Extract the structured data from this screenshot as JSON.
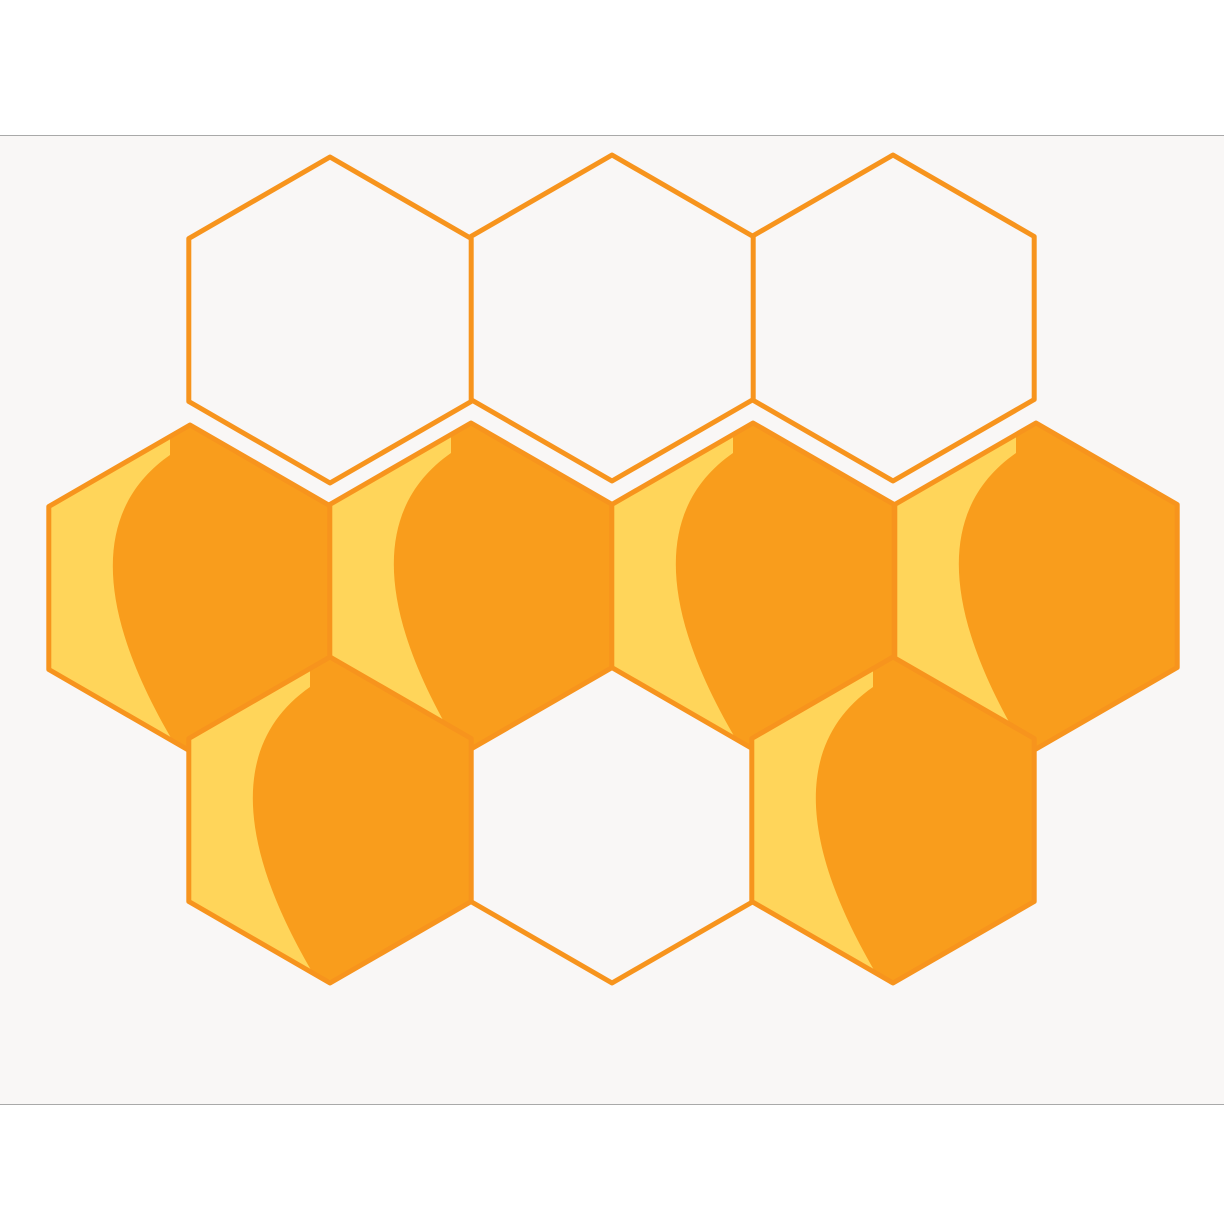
{
  "scene": {
    "description_free": true,
    "colors": {
      "page_background": "#ffffff",
      "panel_background": "#f9f7f6",
      "panel_border": "#a9a9a9",
      "cell_outline": "#f7941d",
      "empty_cell_fill": "#f9f7f6",
      "honey_light": "#ffd55a",
      "honey_drop": "#f99d1c"
    },
    "cells": [
      {
        "id": "top-left",
        "filled": false
      },
      {
        "id": "top-center",
        "filled": false
      },
      {
        "id": "top-right",
        "filled": false
      },
      {
        "id": "middle-1",
        "filled": true
      },
      {
        "id": "middle-2",
        "filled": true
      },
      {
        "id": "middle-3",
        "filled": true
      },
      {
        "id": "middle-4",
        "filled": true
      },
      {
        "id": "bottom-left",
        "filled": true
      },
      {
        "id": "bottom-center",
        "filled": false
      },
      {
        "id": "bottom-right",
        "filled": true
      }
    ],
    "filled_count": 6,
    "empty_count": 4
  }
}
